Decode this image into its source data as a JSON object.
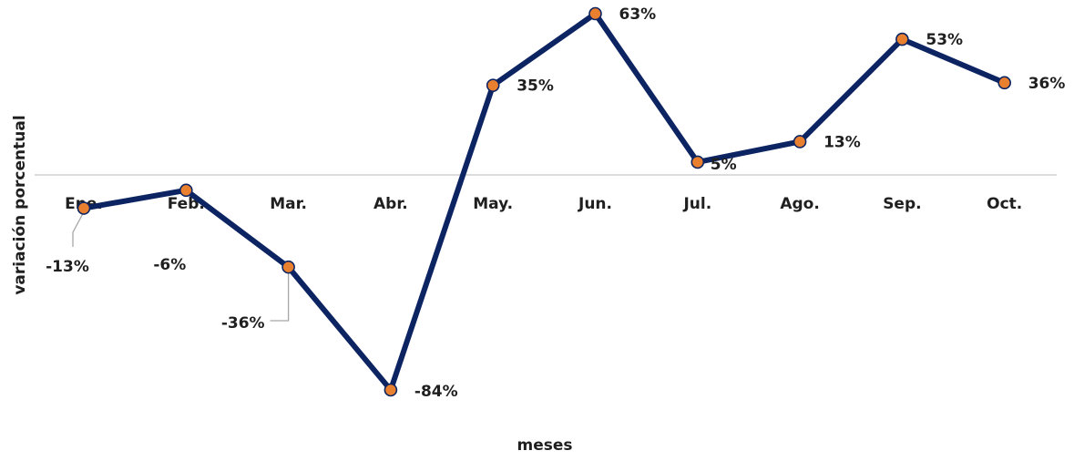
{
  "chart_data": {
    "type": "line",
    "categories": [
      "Ene.",
      "Feb.",
      "Mar.",
      "Abr.",
      "May.",
      "Jun.",
      "Jul.",
      "Ago.",
      "Sep.",
      "Oct."
    ],
    "series": [
      {
        "values": [
          -13,
          -6,
          -36,
          -84,
          35,
          63,
          5,
          13,
          53,
          36
        ]
      }
    ],
    "data_labels": [
      "-13%",
      "-6%",
      "-36%",
      "-84%",
      "35%",
      "63%",
      "5%",
      "13%",
      "53%",
      "36%"
    ],
    "xlabel": "meses",
    "ylabel": "variación porcentual",
    "ylim": [
      -84,
      63
    ],
    "grid": false,
    "legend": "none",
    "colors": {
      "line": "#0d2463",
      "marker_fill": "#e8802f",
      "marker_stroke": "#0d2463",
      "zero_line": "#c8c8c8",
      "leader_line": "#a6a6a6"
    }
  }
}
